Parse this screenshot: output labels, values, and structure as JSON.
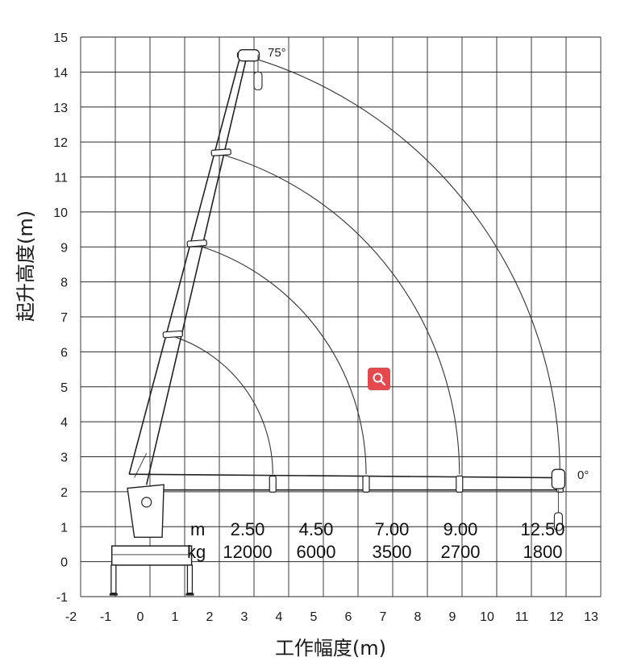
{
  "chart_data": {
    "type": "table",
    "xlabel": "工作幅度(m)",
    "ylabel": "起升高度(m)",
    "xlim": [
      -2,
      13
    ],
    "ylim": [
      -1,
      15
    ],
    "x_ticks": [
      "-2",
      "-1",
      "0",
      "1",
      "2",
      "3",
      "4",
      "5",
      "6",
      "7",
      "8",
      "9",
      "10",
      "11",
      "12",
      "13"
    ],
    "y_ticks": [
      "-1",
      "0",
      "1",
      "2",
      "3",
      "4",
      "5",
      "6",
      "7",
      "8",
      "9",
      "10",
      "11",
      "12",
      "13",
      "14",
      "15"
    ],
    "grid": true,
    "boom_angles": [
      {
        "label": "75°",
        "deg": 75
      },
      {
        "label": "0°",
        "deg": 0
      }
    ],
    "boom_pivot": {
      "x": -0.6,
      "y": 2.5
    },
    "boom_tip_heights_75deg": [
      6.5,
      9.1,
      11.7,
      14.5
    ],
    "load_table": {
      "radius_unit": "m",
      "load_unit": "kg",
      "radius": [
        "2.50",
        "4.50",
        "7.00",
        "9.00",
        "12.50"
      ],
      "load": [
        "12000",
        "6000",
        "3500",
        "2700",
        "1800"
      ]
    }
  },
  "ui": {
    "zoom_icon": "magnifier-icon",
    "accent": "#e5484d"
  }
}
